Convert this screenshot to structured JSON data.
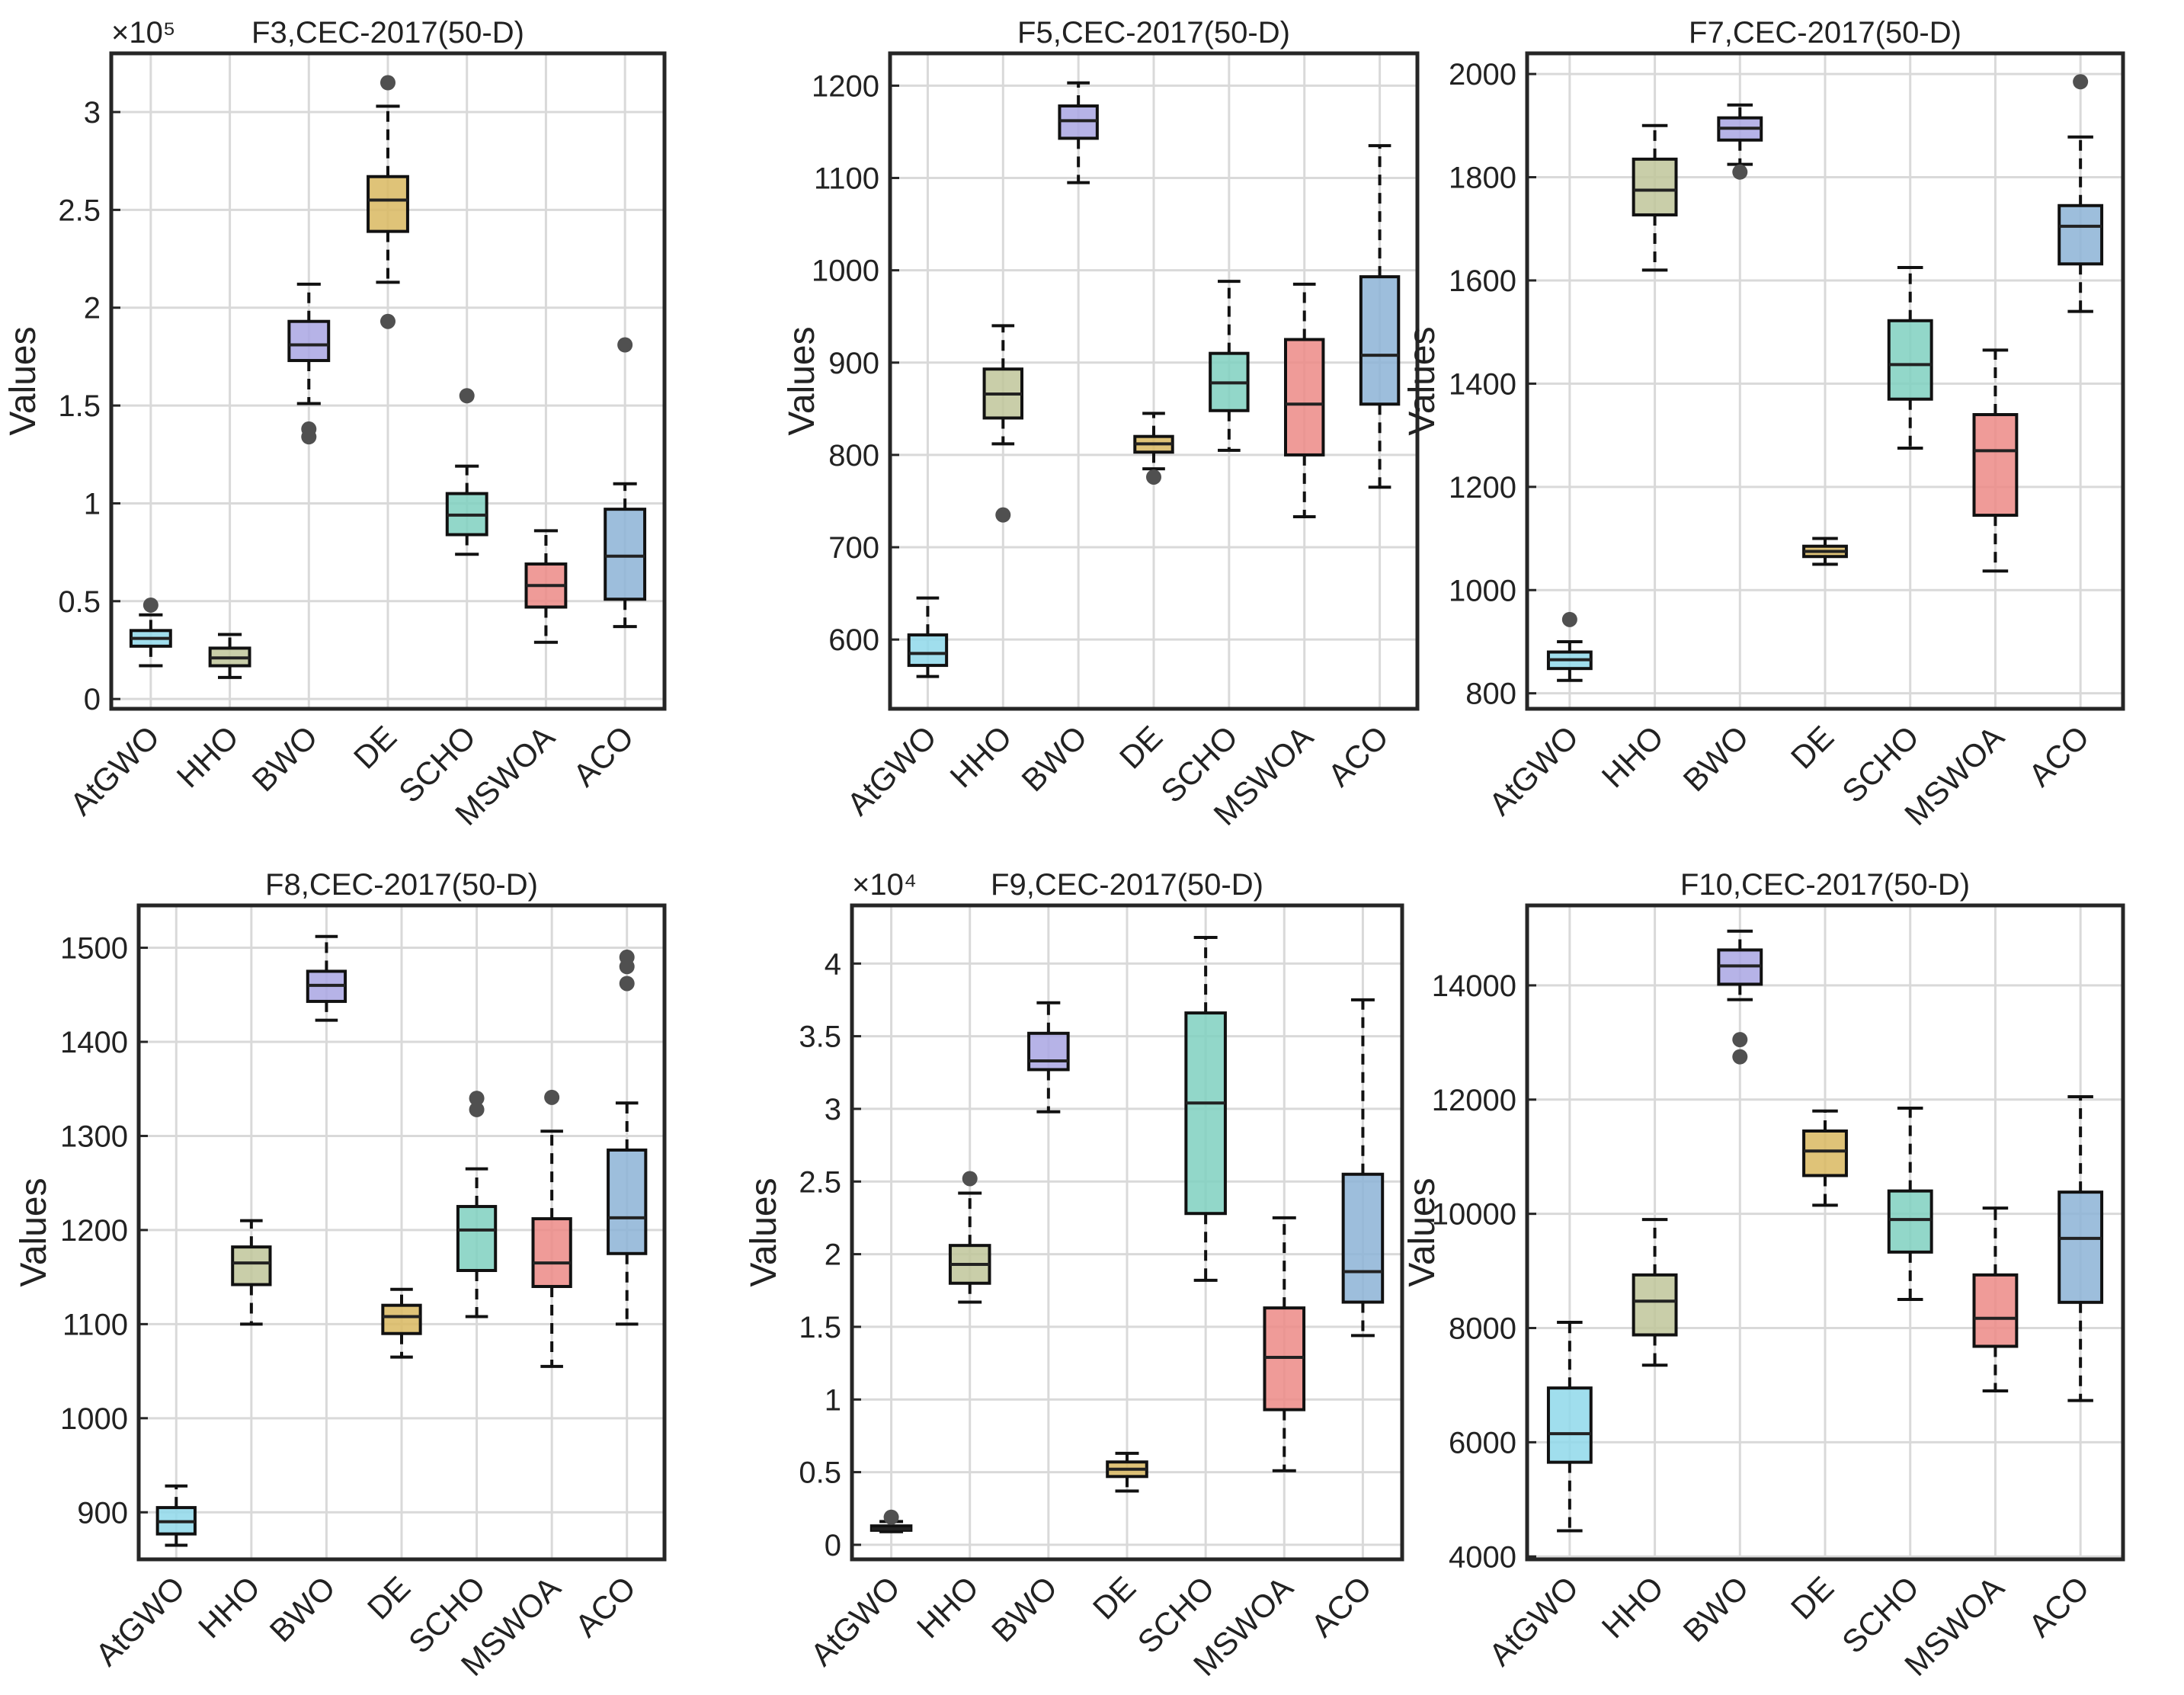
{
  "categories": [
    "AtGWO",
    "HHO",
    "BWO",
    "DE",
    "SCHO",
    "MSWOA",
    "ACO"
  ],
  "colors": [
    "#8fd8ea",
    "#bfc59a",
    "#a9a6e3",
    "#d9b860",
    "#7fd0c0",
    "#ec8a86",
    "#8cb3d6"
  ],
  "chart_data": [
    {
      "type": "box",
      "title": "F3,CEC-2017(50-D)",
      "ylabel": "Values",
      "exponent_label": "×10⁵",
      "scale": 100000,
      "ylim": [
        -0.05,
        3.3
      ],
      "yticks": [
        0,
        0.5,
        1,
        1.5,
        2,
        2.5,
        3
      ],
      "ytick_labels": [
        "0",
        "0.5",
        "1",
        "1.5",
        "2",
        "2.5",
        "3"
      ],
      "boxes": [
        {
          "min": 0.17,
          "q1": 0.27,
          "median": 0.31,
          "q3": 0.35,
          "max": 0.43,
          "outliers": [
            0.48
          ]
        },
        {
          "min": 0.11,
          "q1": 0.17,
          "median": 0.21,
          "q3": 0.26,
          "max": 0.33,
          "outliers": []
        },
        {
          "min": 1.51,
          "q1": 1.73,
          "median": 1.81,
          "q3": 1.93,
          "max": 2.12,
          "outliers": [
            1.38,
            1.34
          ]
        },
        {
          "min": 2.13,
          "q1": 2.39,
          "median": 2.55,
          "q3": 2.67,
          "max": 3.03,
          "outliers": [
            3.15,
            1.93
          ]
        },
        {
          "min": 0.74,
          "q1": 0.84,
          "median": 0.94,
          "q3": 1.05,
          "max": 1.19,
          "outliers": [
            1.55
          ]
        },
        {
          "min": 0.29,
          "q1": 0.47,
          "median": 0.58,
          "q3": 0.69,
          "max": 0.86,
          "outliers": []
        },
        {
          "min": 0.37,
          "q1": 0.51,
          "median": 0.73,
          "q3": 0.97,
          "max": 1.1,
          "outliers": [
            1.81
          ]
        }
      ]
    },
    {
      "type": "box",
      "title": "F5,CEC-2017(50-D)",
      "ylabel": "Values",
      "exponent_label": "",
      "scale": 1,
      "ylim": [
        525,
        1235
      ],
      "yticks": [
        600,
        700,
        800,
        900,
        1000,
        1100,
        1200
      ],
      "ytick_labels": [
        "600",
        "700",
        "800",
        "900",
        "1000",
        "1100",
        "1200"
      ],
      "boxes": [
        {
          "min": 560,
          "q1": 572,
          "median": 585,
          "q3": 605,
          "max": 645,
          "outliers": []
        },
        {
          "min": 812,
          "q1": 840,
          "median": 866,
          "q3": 893,
          "max": 940,
          "outliers": [
            735
          ]
        },
        {
          "min": 1095,
          "q1": 1143,
          "median": 1162,
          "q3": 1178,
          "max": 1203,
          "outliers": []
        },
        {
          "min": 785,
          "q1": 803,
          "median": 812,
          "q3": 820,
          "max": 845,
          "outliers": [
            776
          ]
        },
        {
          "min": 805,
          "q1": 848,
          "median": 878,
          "q3": 910,
          "max": 988,
          "outliers": []
        },
        {
          "min": 733,
          "q1": 800,
          "median": 855,
          "q3": 925,
          "max": 985,
          "outliers": []
        },
        {
          "min": 765,
          "q1": 855,
          "median": 908,
          "q3": 993,
          "max": 1135,
          "outliers": []
        }
      ]
    },
    {
      "type": "box",
      "title": "F7,CEC-2017(50-D)",
      "ylabel": "Values",
      "exponent_label": "",
      "scale": 1,
      "ylim": [
        770,
        2040
      ],
      "yticks": [
        800,
        1000,
        1200,
        1400,
        1600,
        1800,
        2000
      ],
      "ytick_labels": [
        "800",
        "1000",
        "1200",
        "1400",
        "1600",
        "1800",
        "2000"
      ],
      "boxes": [
        {
          "min": 825,
          "q1": 848,
          "median": 865,
          "q3": 880,
          "max": 900,
          "outliers": [
            943
          ]
        },
        {
          "min": 1620,
          "q1": 1727,
          "median": 1775,
          "q3": 1835,
          "max": 1900,
          "outliers": []
        },
        {
          "min": 1825,
          "q1": 1872,
          "median": 1895,
          "q3": 1915,
          "max": 1940,
          "outliers": [
            1810
          ]
        },
        {
          "min": 1050,
          "q1": 1065,
          "median": 1075,
          "q3": 1085,
          "max": 1100,
          "outliers": []
        },
        {
          "min": 1275,
          "q1": 1370,
          "median": 1437,
          "q3": 1522,
          "max": 1625,
          "outliers": []
        },
        {
          "min": 1037,
          "q1": 1145,
          "median": 1270,
          "q3": 1340,
          "max": 1465,
          "outliers": []
        },
        {
          "min": 1540,
          "q1": 1632,
          "median": 1705,
          "q3": 1745,
          "max": 1878,
          "outliers": [
            1985
          ]
        }
      ]
    },
    {
      "type": "box",
      "title": "F8,CEC-2017(50-D)",
      "ylabel": "Values",
      "exponent_label": "",
      "scale": 1,
      "ylim": [
        850,
        1545
      ],
      "yticks": [
        900,
        1000,
        1100,
        1200,
        1300,
        1400,
        1500
      ],
      "ytick_labels": [
        "900",
        "1000",
        "1100",
        "1200",
        "1300",
        "1400",
        "1500"
      ],
      "boxes": [
        {
          "min": 865,
          "q1": 877,
          "median": 890,
          "q3": 905,
          "max": 928,
          "outliers": []
        },
        {
          "min": 1100,
          "q1": 1142,
          "median": 1165,
          "q3": 1182,
          "max": 1210,
          "outliers": []
        },
        {
          "min": 1423,
          "q1": 1443,
          "median": 1460,
          "q3": 1475,
          "max": 1512,
          "outliers": []
        },
        {
          "min": 1065,
          "q1": 1090,
          "median": 1108,
          "q3": 1120,
          "max": 1137,
          "outliers": []
        },
        {
          "min": 1108,
          "q1": 1157,
          "median": 1200,
          "q3": 1225,
          "max": 1265,
          "outliers": [
            1340,
            1328
          ]
        },
        {
          "min": 1055,
          "q1": 1140,
          "median": 1165,
          "q3": 1212,
          "max": 1305,
          "outliers": [
            1341
          ]
        },
        {
          "min": 1100,
          "q1": 1175,
          "median": 1213,
          "q3": 1285,
          "max": 1335,
          "outliers": [
            1490,
            1480,
            1462
          ]
        }
      ]
    },
    {
      "type": "box",
      "title": "F9,CEC-2017(50-D)",
      "ylabel": "Values",
      "exponent_label": "×10⁴",
      "scale": 10000,
      "ylim": [
        -0.1,
        4.4
      ],
      "yticks": [
        0,
        0.5,
        1,
        1.5,
        2,
        2.5,
        3,
        3.5,
        4
      ],
      "ytick_labels": [
        "0",
        "0.5",
        "1",
        "1.5",
        "2",
        "2.5",
        "3",
        "3.5",
        "4"
      ],
      "boxes": [
        {
          "min": 0.09,
          "q1": 0.1,
          "median": 0.11,
          "q3": 0.13,
          "max": 0.16,
          "outliers": [
            0.19
          ]
        },
        {
          "min": 1.67,
          "q1": 1.8,
          "median": 1.93,
          "q3": 2.06,
          "max": 2.42,
          "outliers": [
            2.52
          ]
        },
        {
          "min": 2.98,
          "q1": 3.27,
          "median": 3.33,
          "q3": 3.52,
          "max": 3.73,
          "outliers": []
        },
        {
          "min": 0.37,
          "q1": 0.47,
          "median": 0.52,
          "q3": 0.57,
          "max": 0.63,
          "outliers": []
        },
        {
          "min": 1.82,
          "q1": 2.28,
          "median": 3.04,
          "q3": 3.66,
          "max": 4.18,
          "outliers": []
        },
        {
          "min": 0.51,
          "q1": 0.93,
          "median": 1.29,
          "q3": 1.63,
          "max": 2.25,
          "outliers": []
        },
        {
          "min": 1.44,
          "q1": 1.67,
          "median": 1.88,
          "q3": 2.55,
          "max": 3.75,
          "outliers": []
        }
      ]
    },
    {
      "type": "box",
      "title": "F10,CEC-2017(50-D)",
      "ylabel": "Values",
      "exponent_label": "",
      "scale": 1,
      "ylim": [
        3950,
        15400
      ],
      "yticks": [
        4000,
        6000,
        8000,
        10000,
        12000,
        14000
      ],
      "ytick_labels": [
        "4000",
        "6000",
        "8000",
        "10000",
        "12000",
        "14000"
      ],
      "boxes": [
        {
          "min": 4450,
          "q1": 5650,
          "median": 6150,
          "q3": 6950,
          "max": 8100,
          "outliers": []
        },
        {
          "min": 7350,
          "q1": 7880,
          "median": 8470,
          "q3": 8930,
          "max": 9900,
          "outliers": []
        },
        {
          "min": 13750,
          "q1": 14020,
          "median": 14340,
          "q3": 14620,
          "max": 14950,
          "outliers": [
            13050,
            12750
          ]
        },
        {
          "min": 10150,
          "q1": 10670,
          "median": 11100,
          "q3": 11450,
          "max": 11800,
          "outliers": []
        },
        {
          "min": 8500,
          "q1": 9330,
          "median": 9900,
          "q3": 10400,
          "max": 11850,
          "outliers": []
        },
        {
          "min": 6900,
          "q1": 7680,
          "median": 8170,
          "q3": 8930,
          "max": 10100,
          "outliers": []
        },
        {
          "min": 6730,
          "q1": 8450,
          "median": 9570,
          "q3": 10380,
          "max": 12050,
          "outliers": []
        }
      ]
    }
  ]
}
